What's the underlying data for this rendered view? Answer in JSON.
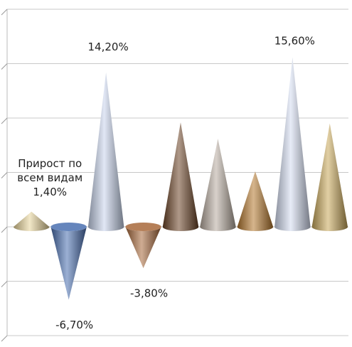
{
  "chart_data": {
    "type": "cone",
    "categories": [
      null,
      null,
      null,
      null,
      null,
      null,
      null,
      null,
      null
    ],
    "values": [
      1.4,
      -6.7,
      14.2,
      -3.8,
      9.6,
      8.1,
      5.1,
      15.6,
      9.5
    ],
    "value_labels": [
      "Прирост по всем видам 1,40%",
      "-6,70%",
      "14,20%",
      "-3,80%",
      null,
      null,
      null,
      "15,60%",
      null
    ],
    "colors": [
      "#e8d49a",
      "#4a6fb0",
      "#c8d4ec",
      "#a8683a",
      "#6b4326",
      "#b8aca0",
      "#b5782e",
      "#d4dcf0",
      "#c8a85a"
    ],
    "ylim": [
      -10,
      20
    ],
    "yticks": [
      -10,
      -5,
      0,
      5,
      10,
      15,
      20
    ],
    "grid": true
  }
}
